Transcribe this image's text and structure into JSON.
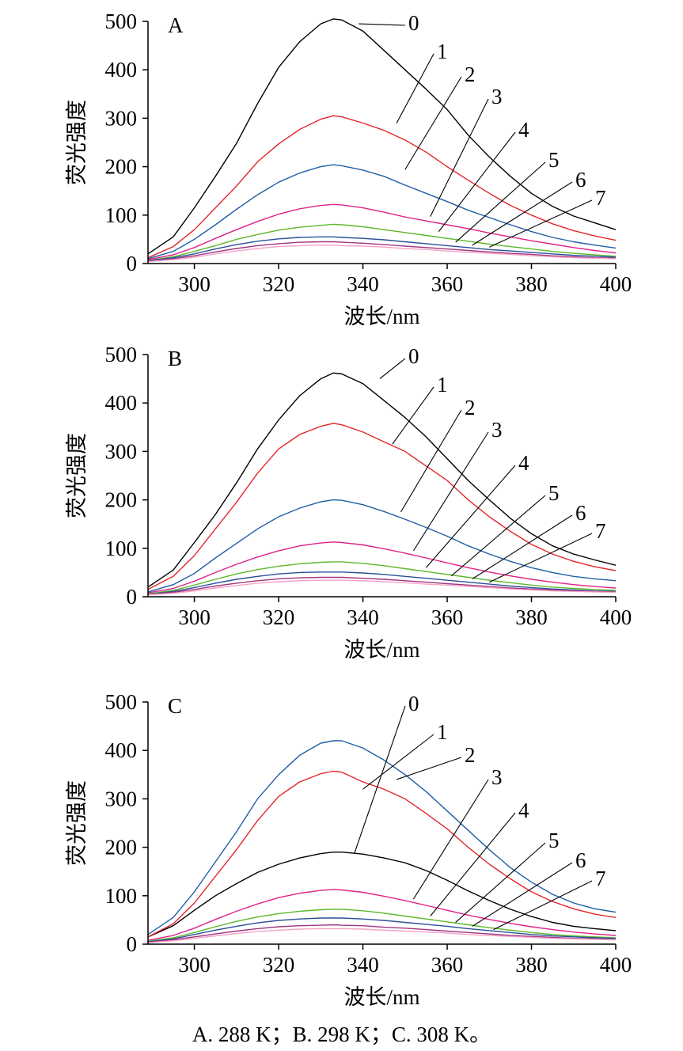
{
  "caption": "A. 288 K；B. 298 K；C. 308 K。",
  "chart_data": [
    {
      "type": "line",
      "panel_label": "A",
      "xlabel": "波长/nm",
      "ylabel": "荧光强度",
      "xlim": [
        289,
        400
      ],
      "ylim": [
        0,
        500
      ],
      "xticks": [
        "300",
        "320",
        "340",
        "360",
        "380",
        "400"
      ],
      "yticks": [
        "0",
        "100",
        "200",
        "300",
        "400",
        "500"
      ],
      "x": [
        289,
        295,
        300,
        305,
        310,
        315,
        320,
        325,
        330,
        333,
        335,
        340,
        345,
        350,
        355,
        360,
        365,
        370,
        375,
        380,
        385,
        390,
        395,
        400
      ],
      "series": [
        {
          "name": "0",
          "color": "#000000",
          "values": [
            20,
            55,
            115,
            180,
            248,
            330,
            405,
            458,
            495,
            505,
            503,
            480,
            440,
            400,
            360,
            318,
            265,
            220,
            180,
            145,
            118,
            98,
            84,
            70
          ]
        },
        {
          "name": "1",
          "color": "#e3262a",
          "values": [
            12,
            35,
            70,
            115,
            160,
            210,
            247,
            277,
            298,
            305,
            303,
            290,
            275,
            255,
            230,
            200,
            172,
            145,
            120,
            100,
            82,
            68,
            57,
            48
          ]
        },
        {
          "name": "2",
          "color": "#1f5fa8",
          "values": [
            10,
            25,
            50,
            80,
            112,
            142,
            168,
            187,
            200,
            204,
            202,
            193,
            180,
            162,
            145,
            128,
            110,
            95,
            80,
            66,
            54,
            45,
            38,
            32
          ]
        },
        {
          "name": "3",
          "color": "#e0218a",
          "values": [
            8,
            18,
            33,
            52,
            70,
            87,
            102,
            113,
            120,
            122,
            121,
            115,
            106,
            96,
            88,
            80,
            72,
            63,
            55,
            47,
            40,
            33,
            27,
            22
          ]
        },
        {
          "name": "4",
          "color": "#5cb82a",
          "values": [
            6,
            14,
            25,
            37,
            50,
            60,
            69,
            75,
            79,
            81,
            80,
            76,
            70,
            64,
            58,
            52,
            46,
            40,
            35,
            30,
            25,
            21,
            18,
            15
          ]
        },
        {
          "name": "5",
          "color": "#2a4f99",
          "values": [
            6,
            12,
            20,
            30,
            39,
            46,
            51,
            54,
            55,
            55,
            54,
            52,
            49,
            45,
            41,
            37,
            33,
            29,
            26,
            23,
            20,
            17,
            15,
            13
          ]
        },
        {
          "name": "6",
          "color": "#a0357f",
          "values": [
            5,
            10,
            16,
            24,
            31,
            37,
            41,
            44,
            45,
            45,
            44,
            42,
            39,
            36,
            33,
            30,
            27,
            24,
            21,
            19,
            16,
            14,
            12,
            11
          ]
        },
        {
          "name": "7",
          "color": "#f4a3c8",
          "values": [
            4,
            8,
            13,
            20,
            26,
            31,
            35,
            37,
            38,
            38,
            37,
            36,
            34,
            31,
            29,
            26,
            23,
            21,
            19,
            16,
            14,
            12,
            11,
            10
          ]
        }
      ]
    },
    {
      "type": "line",
      "panel_label": "B",
      "xlabel": "波长/nm",
      "ylabel": "荧光强度",
      "xlim": [
        289,
        400
      ],
      "ylim": [
        0,
        500
      ],
      "xticks": [
        "300",
        "320",
        "340",
        "360",
        "380",
        "400"
      ],
      "yticks": [
        "0",
        "100",
        "200",
        "300",
        "400",
        "500"
      ],
      "x": [
        289,
        295,
        300,
        305,
        310,
        315,
        320,
        325,
        330,
        333,
        335,
        340,
        345,
        350,
        355,
        360,
        365,
        370,
        375,
        380,
        385,
        390,
        395,
        400
      ],
      "series": [
        {
          "name": "0",
          "color": "#000000",
          "values": [
            20,
            55,
            112,
            170,
            235,
            305,
            365,
            415,
            450,
            462,
            460,
            440,
            405,
            370,
            330,
            285,
            240,
            200,
            162,
            130,
            105,
            88,
            76,
            65
          ]
        },
        {
          "name": "1",
          "color": "#e3262a",
          "values": [
            15,
            42,
            85,
            140,
            195,
            255,
            305,
            335,
            352,
            358,
            355,
            340,
            320,
            300,
            270,
            240,
            200,
            165,
            135,
            108,
            88,
            73,
            62,
            54
          ]
        },
        {
          "name": "2",
          "color": "#1f5fa8",
          "values": [
            10,
            25,
            48,
            80,
            110,
            140,
            165,
            183,
            196,
            200,
            199,
            190,
            176,
            160,
            143,
            125,
            105,
            88,
            73,
            60,
            50,
            42,
            37,
            33
          ]
        },
        {
          "name": "3",
          "color": "#e0218a",
          "values": [
            8,
            17,
            32,
            50,
            67,
            82,
            95,
            105,
            111,
            113,
            112,
            107,
            99,
            90,
            80,
            70,
            60,
            51,
            43,
            36,
            30,
            25,
            21,
            18
          ]
        },
        {
          "name": "4",
          "color": "#5cb82a",
          "values": [
            6,
            13,
            24,
            36,
            47,
            56,
            63,
            68,
            71,
            72,
            72,
            69,
            64,
            58,
            52,
            46,
            40,
            34,
            29,
            24,
            20,
            17,
            15,
            13
          ]
        },
        {
          "name": "5",
          "color": "#2a4f99",
          "values": [
            5,
            11,
            19,
            28,
            36,
            42,
            47,
            50,
            51,
            51,
            51,
            49,
            46,
            42,
            38,
            34,
            30,
            26,
            22,
            19,
            16,
            14,
            12,
            11
          ]
        },
        {
          "name": "6",
          "color": "#a0357f",
          "values": [
            5,
            9,
            15,
            22,
            28,
            33,
            37,
            39,
            40,
            40,
            40,
            38,
            36,
            33,
            30,
            27,
            24,
            21,
            18,
            16,
            14,
            12,
            11,
            10
          ]
        },
        {
          "name": "7",
          "color": "#f4a3c8",
          "values": [
            4,
            7,
            12,
            18,
            23,
            28,
            31,
            33,
            34,
            34,
            34,
            33,
            31,
            29,
            26,
            24,
            21,
            19,
            16,
            14,
            12,
            11,
            10,
            9
          ]
        }
      ]
    },
    {
      "type": "line",
      "panel_label": "C",
      "xlabel": "波长/nm",
      "ylabel": "荧光强度",
      "xlim": [
        289,
        400
      ],
      "ylim": [
        0,
        500
      ],
      "xticks": [
        "300",
        "320",
        "340",
        "360",
        "380",
        "400"
      ],
      "yticks": [
        "0",
        "100",
        "200",
        "300",
        "400",
        "500"
      ],
      "x": [
        289,
        295,
        300,
        305,
        310,
        315,
        320,
        325,
        330,
        333,
        335,
        340,
        345,
        350,
        355,
        360,
        365,
        370,
        375,
        380,
        385,
        390,
        395,
        400
      ],
      "series": [
        {
          "name": "0",
          "color": "#000000",
          "values": [
            15,
            38,
            70,
            100,
            125,
            148,
            165,
            178,
            187,
            190,
            190,
            186,
            178,
            168,
            152,
            132,
            110,
            90,
            72,
            57,
            45,
            37,
            32,
            28
          ]
        },
        {
          "name": "1",
          "color": "#e3262a",
          "values": [
            15,
            42,
            85,
            140,
            195,
            255,
            305,
            335,
            352,
            357,
            355,
            335,
            320,
            300,
            270,
            238,
            200,
            165,
            135,
            108,
            88,
            73,
            62,
            55
          ]
        },
        {
          "name": "2",
          "color": "#1f5fa8",
          "values": [
            20,
            55,
            108,
            170,
            232,
            300,
            350,
            390,
            415,
            420,
            420,
            405,
            380,
            350,
            315,
            275,
            235,
            195,
            158,
            128,
            103,
            85,
            73,
            66
          ]
        },
        {
          "name": "3",
          "color": "#e0218a",
          "values": [
            8,
            18,
            33,
            51,
            68,
            83,
            96,
            105,
            111,
            113,
            112,
            107,
            99,
            90,
            80,
            70,
            60,
            51,
            43,
            36,
            30,
            25,
            21,
            18
          ]
        },
        {
          "name": "4",
          "color": "#5cb82a",
          "values": [
            6,
            13,
            24,
            36,
            47,
            56,
            63,
            68,
            71,
            72,
            72,
            69,
            64,
            58,
            52,
            46,
            40,
            34,
            29,
            24,
            20,
            17,
            15,
            13
          ]
        },
        {
          "name": "5",
          "color": "#2a4f99",
          "values": [
            5,
            11,
            20,
            29,
            37,
            44,
            49,
            52,
            54,
            54,
            54,
            52,
            49,
            45,
            41,
            37,
            32,
            28,
            24,
            20,
            17,
            15,
            13,
            12
          ]
        },
        {
          "name": "6",
          "color": "#a0357f",
          "values": [
            4,
            9,
            15,
            21,
            27,
            32,
            36,
            38,
            39,
            40,
            39,
            38,
            35,
            33,
            30,
            27,
            24,
            21,
            18,
            16,
            14,
            12,
            11,
            10
          ]
        },
        {
          "name": "7",
          "color": "#f4a3c8",
          "values": [
            3,
            7,
            12,
            17,
            22,
            26,
            29,
            31,
            32,
            32,
            32,
            31,
            29,
            27,
            25,
            23,
            20,
            18,
            16,
            14,
            12,
            11,
            10,
            9
          ]
        }
      ]
    }
  ]
}
